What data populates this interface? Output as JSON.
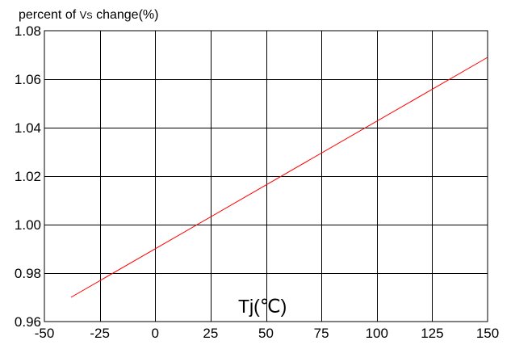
{
  "chart_data": {
    "type": "line",
    "ylabel": {
      "prefix": "percent of ",
      "symbol": "V",
      "subscript": "S",
      "suffix": " change(%)"
    },
    "xlabel": "Tj(℃)",
    "xlim": [
      -50,
      150
    ],
    "ylim": [
      0.96,
      1.08
    ],
    "x_ticks": [
      -50,
      -25,
      0,
      25,
      50,
      75,
      100,
      125,
      150
    ],
    "y_ticks": [
      0.96,
      0.98,
      1.0,
      1.02,
      1.04,
      1.06,
      1.08
    ],
    "x_tick_labels": [
      "-50",
      "-25",
      "0",
      "25",
      "50",
      "75",
      "100",
      "125",
      "150"
    ],
    "y_tick_labels": [
      "0.96",
      "0.98",
      "1.00",
      "1.02",
      "1.04",
      "1.06",
      "1.08"
    ],
    "grid": true,
    "series": [
      {
        "color": "#ff0000",
        "x": [
          -38,
          150
        ],
        "y": [
          0.97,
          1.069
        ]
      }
    ]
  }
}
